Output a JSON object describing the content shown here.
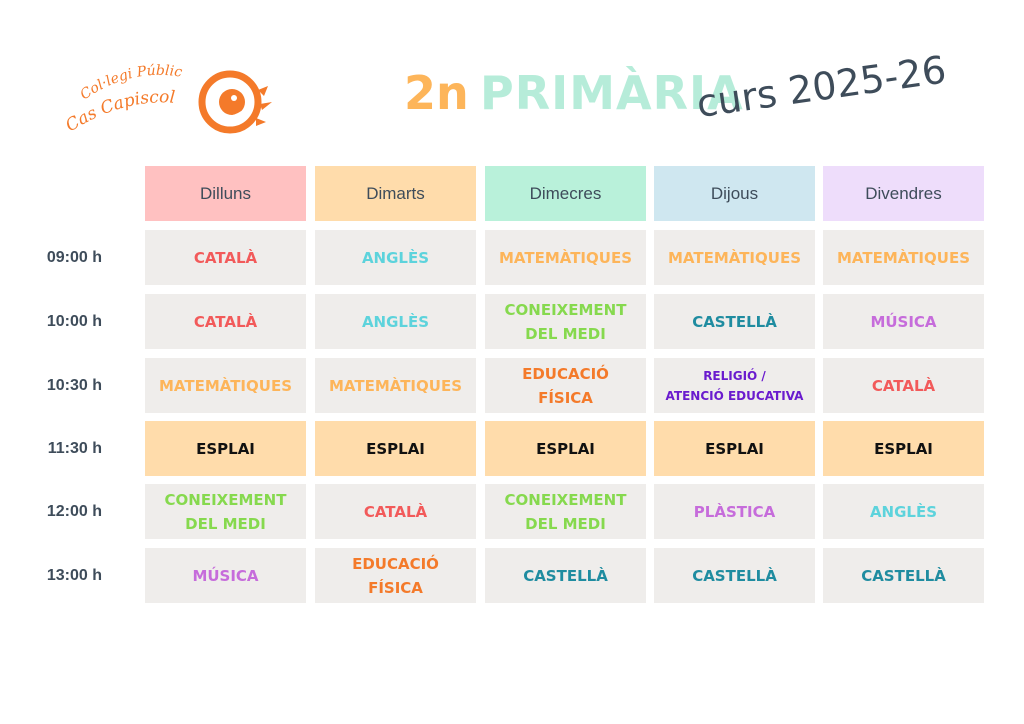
{
  "logo": {
    "line1": "Col·legi Públic",
    "line2": "Cas Capiscol"
  },
  "title": {
    "grade": "2n",
    "level": "PRIMÀRIA",
    "year": "curs 2025-26"
  },
  "colors": {
    "CATALÀ": "#F25A5A",
    "ANGLÈS": "#5DD3DC",
    "MATEMÀTIQUES": "#FDB55A",
    "CONEIXEMENT DEL MEDI": "#86D94E",
    "CASTELLÀ": "#1F8CA0",
    "MÚSICA": "#C66CDB",
    "EDUCACIÓ FÍSICA": "#F47A2A",
    "RELIGIÓ / ATENCIÓ EDUCATIVA": "#6A1BCE",
    "ESPLAI": "#111111",
    "PLÀSTICA": "#C66CDB"
  },
  "days": [
    {
      "label": "Dilluns",
      "color": "#FFC1C1"
    },
    {
      "label": "Dimarts",
      "color": "#FFDCAB"
    },
    {
      "label": "Dimecres",
      "color": "#B9F1DA"
    },
    {
      "label": "Dijous",
      "color": "#CFE7F0"
    },
    {
      "label": "Divendres",
      "color": "#EEDDFB"
    }
  ],
  "rows": [
    {
      "time": "09:00 h",
      "cells": [
        {
          "line1": "CATALÀ",
          "subject": "CATALÀ"
        },
        {
          "line1": "ANGLÈS",
          "subject": "ANGLÈS"
        },
        {
          "line1": "MATEMÀTIQUES",
          "subject": "MATEMÀTIQUES"
        },
        {
          "line1": "MATEMÀTIQUES",
          "subject": "MATEMÀTIQUES"
        },
        {
          "line1": "MATEMÀTIQUES",
          "subject": "MATEMÀTIQUES"
        }
      ]
    },
    {
      "time": "10:00 h",
      "cells": [
        {
          "line1": "CATALÀ",
          "subject": "CATALÀ"
        },
        {
          "line1": "ANGLÈS",
          "subject": "ANGLÈS"
        },
        {
          "line1": "CONEIXEMENT",
          "line2": "DEL MEDI",
          "subject": "CONEIXEMENT DEL MEDI"
        },
        {
          "line1": "CASTELLÀ",
          "subject": "CASTELLÀ"
        },
        {
          "line1": "MÚSICA",
          "subject": "MÚSICA"
        }
      ]
    },
    {
      "time": "10:30 h",
      "cells": [
        {
          "line1": "MATEMÀTIQUES",
          "subject": "MATEMÀTIQUES"
        },
        {
          "line1": "MATEMÀTIQUES",
          "subject": "MATEMÀTIQUES"
        },
        {
          "line1": "EDUCACIÓ",
          "line2": "FÍSICA",
          "subject": "EDUCACIÓ FÍSICA"
        },
        {
          "line1": "RELIGIÓ /",
          "line2": "ATENCIÓ EDUCATIVA",
          "subject": "RELIGIÓ / ATENCIÓ EDUCATIVA",
          "small": true
        },
        {
          "line1": "CATALÀ",
          "subject": "CATALÀ"
        }
      ]
    },
    {
      "time": "11:30 h",
      "break": true,
      "cells": [
        {
          "line1": "ESPLAI",
          "subject": "ESPLAI"
        },
        {
          "line1": "ESPLAI",
          "subject": "ESPLAI"
        },
        {
          "line1": "ESPLAI",
          "subject": "ESPLAI"
        },
        {
          "line1": "ESPLAI",
          "subject": "ESPLAI"
        },
        {
          "line1": "ESPLAI",
          "subject": "ESPLAI"
        }
      ]
    },
    {
      "time": "12:00 h",
      "cells": [
        {
          "line1": "CONEIXEMENT",
          "line2": "DEL MEDI",
          "subject": "CONEIXEMENT DEL MEDI"
        },
        {
          "line1": "CATALÀ",
          "subject": "CATALÀ"
        },
        {
          "line1": "CONEIXEMENT",
          "line2": "DEL MEDI",
          "subject": "CONEIXEMENT DEL MEDI"
        },
        {
          "line1": "PLÀSTICA",
          "subject": "PLÀSTICA"
        },
        {
          "line1": "ANGLÈS",
          "subject": "ANGLÈS"
        }
      ]
    },
    {
      "time": "13:00 h",
      "cells": [
        {
          "line1": "MÚSICA",
          "subject": "MÚSICA"
        },
        {
          "line1": "EDUCACIÓ",
          "line2": "FÍSICA",
          "subject": "EDUCACIÓ FÍSICA"
        },
        {
          "line1": "CASTELLÀ",
          "subject": "CASTELLÀ"
        },
        {
          "line1": "CASTELLÀ",
          "subject": "CASTELLÀ"
        },
        {
          "line1": "CASTELLÀ",
          "subject": "CASTELLÀ"
        }
      ]
    }
  ],
  "break_color": "#FFDCAB"
}
